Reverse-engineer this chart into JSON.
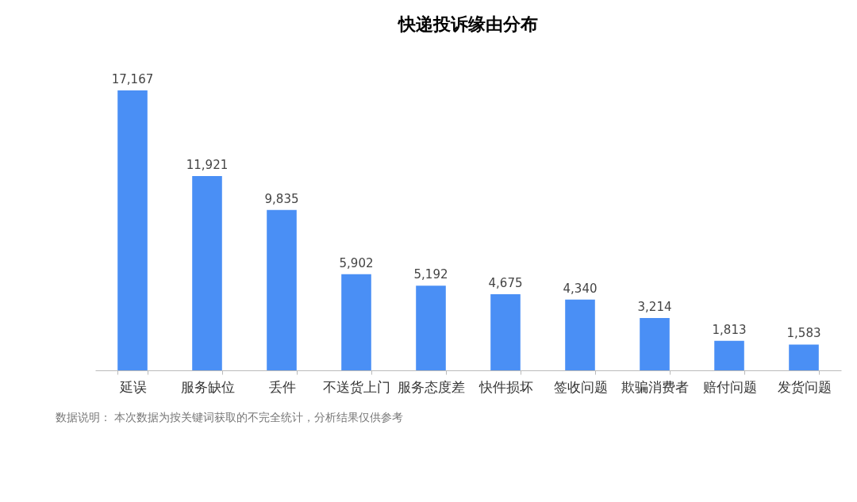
{
  "chart_data": {
    "type": "bar",
    "title": "快递投诉缘由分布",
    "categories": [
      "延误",
      "服务缺位",
      "丢件",
      "不送货上门",
      "服务态度差",
      "快件损坏",
      "签收问题",
      "欺骗消费者",
      "赔付问题",
      "发货问题"
    ],
    "values": [
      17167,
      11921,
      9835,
      5902,
      5192,
      4675,
      4340,
      3214,
      1813,
      1583
    ],
    "value_labels": [
      "17,167",
      "11,921",
      "9,835",
      "5,902",
      "5,192",
      "4,675",
      "4,340",
      "3,214",
      "1,813",
      "1,583"
    ],
    "color": "#4a8ff5",
    "grid": false,
    "tick_labels": "x",
    "annotations": [
      "数据说明： 本次数据为按关键词获取的不完全统计，分析结果仅供参考"
    ]
  }
}
